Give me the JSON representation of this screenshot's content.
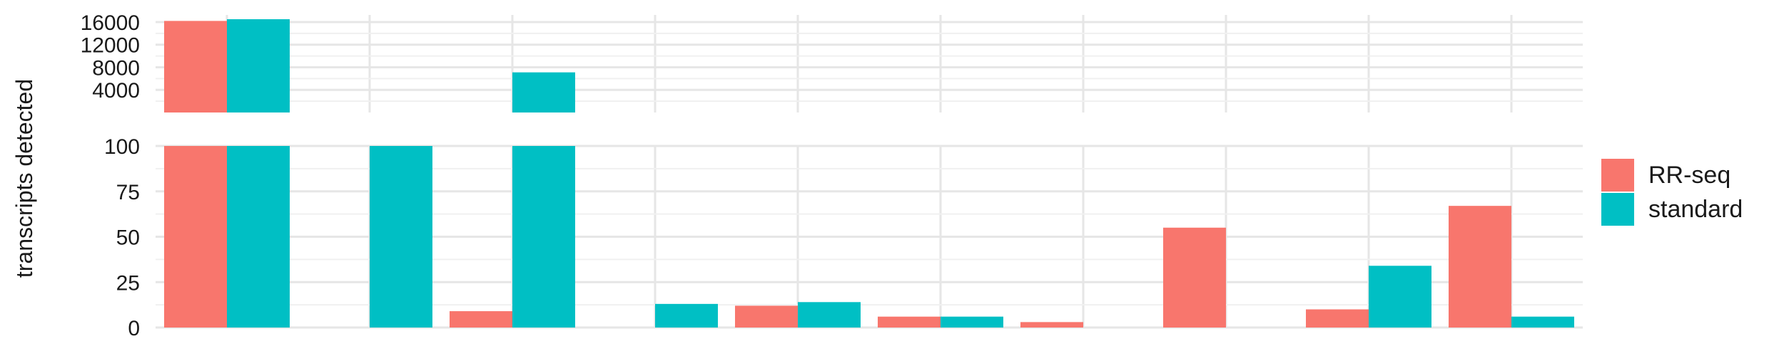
{
  "chart_data": {
    "type": "bar",
    "ylabel": "transcripts detected",
    "xlabel": "",
    "categories": [
      "",
      "",
      "",
      "",
      "",
      "",
      "",
      "",
      "",
      ""
    ],
    "upper_ticks": [
      "4000",
      "8000",
      "12000",
      "16000"
    ],
    "lower_ticks": [
      "0",
      "25",
      "50",
      "75",
      "100"
    ],
    "upper_ylim": [
      0,
      16500
    ],
    "lower_ylim": [
      0,
      100
    ],
    "grid": true,
    "legend_position": "right",
    "series": [
      {
        "name": "RR-seq",
        "color": "#F8766D",
        "values": [
          16200,
          0,
          9,
          0,
          12,
          6,
          3,
          55,
          10,
          67
        ]
      },
      {
        "name": "standard",
        "color": "#00BFC4",
        "values": [
          16700,
          100,
          7100,
          13,
          14,
          6,
          0,
          0,
          34,
          6
        ]
      }
    ]
  }
}
